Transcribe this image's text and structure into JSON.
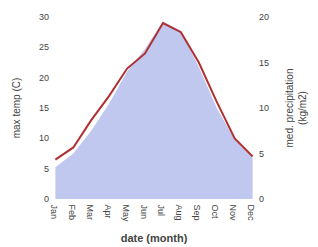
{
  "chart_data": {
    "type": "line",
    "categories": [
      "Jan",
      "Feb",
      "Mar",
      "Apr",
      "May",
      "Jun",
      "Jul",
      "Aug",
      "Sep",
      "Oct",
      "Nov",
      "Dec"
    ],
    "xlabel": "date (month)",
    "ylabel": "max temp (C)",
    "y2label": "med. precipitation\n(kg/m2)",
    "ylim": [
      0,
      30
    ],
    "yticks": [
      0,
      5,
      10,
      15,
      20,
      25,
      30
    ],
    "y2lim": [
      0,
      20
    ],
    "y2ticks": [
      0,
      5,
      10,
      15,
      20
    ],
    "grid": false,
    "series": [
      {
        "type": "area",
        "axis": "y2",
        "color": "#c0c8f0",
        "values": [
          3.5,
          5.0,
          7.5,
          10.5,
          14.0,
          16.5,
          19.5,
          18.5,
          14.5,
          10.0,
          6.5,
          4.5
        ]
      },
      {
        "type": "line",
        "color": "#b03030",
        "values": [
          6.5,
          8.5,
          13.0,
          17.0,
          21.5,
          24.0,
          29.0,
          27.5,
          22.5,
          16.0,
          10.0,
          7.0
        ]
      }
    ]
  }
}
